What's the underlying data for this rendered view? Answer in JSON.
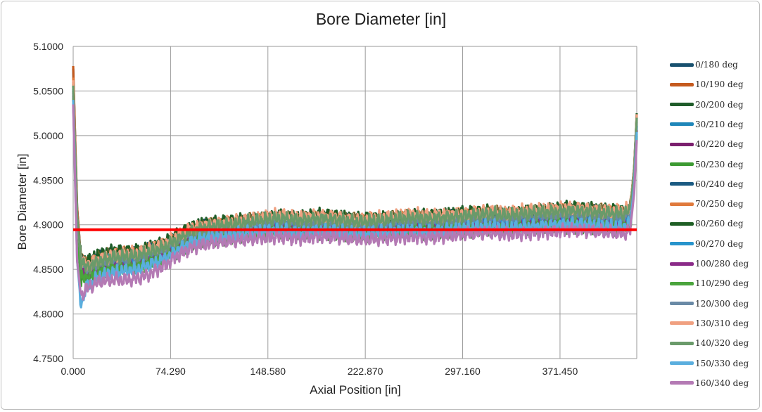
{
  "chart_data": {
    "type": "line",
    "title": "Bore Diameter [in]",
    "xlabel": "Axial Position [in]",
    "ylabel": "Bore Diameter [in]",
    "xlim": [
      0,
      430.0
    ],
    "ylim": [
      4.75,
      5.1
    ],
    "x_ticks": [
      0,
      74.29,
      148.58,
      222.87,
      297.16,
      371.45
    ],
    "x_tick_labels": [
      "0.000",
      "74.290",
      "148.580",
      "222.870",
      "297.160",
      "371.450"
    ],
    "y_ticks": [
      4.75,
      4.8,
      4.85,
      4.9,
      4.95,
      5.0,
      5.05,
      5.1
    ],
    "y_tick_labels": [
      "4.7500",
      "4.8000",
      "4.8500",
      "4.9000",
      "4.9500",
      "5.0000",
      "5.0500",
      "5.1000"
    ],
    "grid": "horizontal and vertical",
    "legend_position": "right",
    "reference_line": {
      "y": 4.8945,
      "color": "#ff0000"
    },
    "x": [
      0,
      3,
      6,
      10,
      20,
      30,
      40,
      50,
      60,
      70,
      80,
      90,
      100,
      110,
      120,
      130,
      140,
      150,
      160,
      170,
      180,
      190,
      200,
      210,
      220,
      230,
      240,
      250,
      260,
      270,
      280,
      290,
      300,
      310,
      320,
      330,
      340,
      350,
      360,
      370,
      380,
      390,
      400,
      410,
      420,
      425,
      428,
      430
    ],
    "series": [
      {
        "name": "0/180 deg",
        "color": "#17506e",
        "values": [
          5.075,
          4.92,
          4.86,
          4.855,
          4.862,
          4.865,
          4.866,
          4.868,
          4.874,
          4.876,
          4.885,
          4.893,
          4.897,
          4.898,
          4.9,
          4.901,
          4.903,
          4.905,
          4.906,
          4.904,
          4.905,
          4.906,
          4.905,
          4.903,
          4.902,
          4.903,
          4.904,
          4.906,
          4.907,
          4.906,
          4.907,
          4.908,
          4.909,
          4.91,
          4.911,
          4.909,
          4.91,
          4.912,
          4.913,
          4.914,
          4.915,
          4.914,
          4.913,
          4.912,
          4.911,
          4.915,
          4.96,
          5.02
        ]
      },
      {
        "name": "10/190 deg",
        "color": "#c55a1e",
        "values": [
          5.078,
          4.92,
          4.86,
          4.852,
          4.858,
          4.862,
          4.863,
          4.864,
          4.868,
          4.872,
          4.882,
          4.89,
          4.894,
          4.896,
          4.897,
          4.899,
          4.9,
          4.902,
          4.903,
          4.901,
          4.902,
          4.903,
          4.902,
          4.9,
          4.899,
          4.9,
          4.901,
          4.902,
          4.903,
          4.902,
          4.903,
          4.904,
          4.905,
          4.906,
          4.907,
          4.905,
          4.906,
          4.907,
          4.908,
          4.909,
          4.91,
          4.909,
          4.908,
          4.907,
          4.906,
          4.91,
          4.955,
          5.015
        ]
      },
      {
        "name": "20/200 deg",
        "color": "#1f5c2a",
        "values": [
          5.06,
          4.91,
          4.86,
          4.858,
          4.866,
          4.87,
          4.87,
          4.871,
          4.876,
          4.88,
          4.888,
          4.896,
          4.9,
          4.901,
          4.903,
          4.905,
          4.907,
          4.908,
          4.91,
          4.908,
          4.909,
          4.91,
          4.909,
          4.907,
          4.906,
          4.907,
          4.908,
          4.909,
          4.91,
          4.909,
          4.91,
          4.911,
          4.912,
          4.913,
          4.914,
          4.912,
          4.913,
          4.915,
          4.916,
          4.917,
          4.918,
          4.917,
          4.916,
          4.915,
          4.914,
          4.918,
          4.965,
          5.025
        ]
      },
      {
        "name": "30/210 deg",
        "color": "#1e86b9",
        "values": [
          5.05,
          4.9,
          4.85,
          4.848,
          4.855,
          4.858,
          4.859,
          4.86,
          4.865,
          4.87,
          4.879,
          4.887,
          4.891,
          4.893,
          4.894,
          4.896,
          4.898,
          4.899,
          4.9,
          4.898,
          4.899,
          4.9,
          4.899,
          4.897,
          4.896,
          4.897,
          4.898,
          4.899,
          4.9,
          4.899,
          4.9,
          4.901,
          4.902,
          4.903,
          4.904,
          4.902,
          4.903,
          4.904,
          4.905,
          4.906,
          4.907,
          4.906,
          4.905,
          4.904,
          4.903,
          4.907,
          4.95,
          5.01
        ]
      },
      {
        "name": "40/220 deg",
        "color": "#7a1f6e",
        "values": [
          5.045,
          4.9,
          4.85,
          4.846,
          4.852,
          4.856,
          4.857,
          4.858,
          4.863,
          4.868,
          4.877,
          4.885,
          4.889,
          4.891,
          4.892,
          4.894,
          4.896,
          4.897,
          4.898,
          4.896,
          4.897,
          4.898,
          4.897,
          4.895,
          4.894,
          4.895,
          4.896,
          4.897,
          4.898,
          4.897,
          4.898,
          4.899,
          4.9,
          4.901,
          4.902,
          4.9,
          4.901,
          4.902,
          4.903,
          4.904,
          4.905,
          4.904,
          4.903,
          4.902,
          4.901,
          4.905,
          4.945,
          5.005
        ]
      },
      {
        "name": "50/230 deg",
        "color": "#3c9a32",
        "values": [
          5.04,
          4.89,
          4.84,
          4.84,
          4.846,
          4.85,
          4.851,
          4.852,
          4.857,
          4.862,
          4.871,
          4.879,
          4.883,
          4.885,
          4.886,
          4.888,
          4.89,
          4.891,
          4.892,
          4.89,
          4.891,
          4.892,
          4.891,
          4.889,
          4.888,
          4.889,
          4.89,
          4.891,
          4.892,
          4.891,
          4.892,
          4.893,
          4.894,
          4.895,
          4.896,
          4.894,
          4.895,
          4.896,
          4.897,
          4.898,
          4.899,
          4.898,
          4.897,
          4.896,
          4.895,
          4.899,
          4.94,
          5.0
        ]
      },
      {
        "name": "60/240 deg",
        "color": "#1a5a82",
        "values": [
          5.055,
          4.91,
          4.86,
          4.854,
          4.861,
          4.864,
          4.865,
          4.866,
          4.871,
          4.875,
          4.884,
          4.892,
          4.896,
          4.897,
          4.899,
          4.9,
          4.902,
          4.904,
          4.905,
          4.903,
          4.904,
          4.905,
          4.904,
          4.902,
          4.901,
          4.902,
          4.903,
          4.905,
          4.906,
          4.905,
          4.906,
          4.907,
          4.908,
          4.909,
          4.91,
          4.908,
          4.909,
          4.911,
          4.912,
          4.913,
          4.914,
          4.913,
          4.912,
          4.911,
          4.91,
          4.914,
          4.958,
          5.018
        ]
      },
      {
        "name": "70/250 deg",
        "color": "#e07a3c",
        "values": [
          5.065,
          4.91,
          4.86,
          4.856,
          4.863,
          4.866,
          4.867,
          4.868,
          4.873,
          4.877,
          4.886,
          4.894,
          4.898,
          4.9,
          4.901,
          4.903,
          4.905,
          4.906,
          4.908,
          4.906,
          4.907,
          4.908,
          4.907,
          4.905,
          4.904,
          4.905,
          4.906,
          4.908,
          4.909,
          4.908,
          4.909,
          4.91,
          4.911,
          4.912,
          4.913,
          4.911,
          4.912,
          4.914,
          4.915,
          4.916,
          4.917,
          4.916,
          4.915,
          4.914,
          4.913,
          4.917,
          4.962,
          5.022
        ]
      },
      {
        "name": "80/260 deg",
        "color": "#1e5e24",
        "values": [
          5.058,
          4.91,
          4.86,
          4.857,
          4.864,
          4.868,
          4.869,
          4.87,
          4.875,
          4.879,
          4.888,
          4.896,
          4.9,
          4.901,
          4.903,
          4.904,
          4.906,
          4.908,
          4.909,
          4.907,
          4.908,
          4.909,
          4.908,
          4.906,
          4.905,
          4.906,
          4.907,
          4.909,
          4.91,
          4.909,
          4.91,
          4.911,
          4.912,
          4.913,
          4.914,
          4.912,
          4.913,
          4.915,
          4.916,
          4.917,
          4.918,
          4.917,
          4.916,
          4.915,
          4.914,
          4.918,
          4.963,
          5.023
        ]
      },
      {
        "name": "90/270 deg",
        "color": "#2794cc",
        "values": [
          5.052,
          4.9,
          4.85,
          4.849,
          4.856,
          4.859,
          4.86,
          4.861,
          4.866,
          4.871,
          4.88,
          4.888,
          4.892,
          4.894,
          4.895,
          4.897,
          4.899,
          4.9,
          4.901,
          4.899,
          4.9,
          4.901,
          4.9,
          4.898,
          4.897,
          4.898,
          4.899,
          4.9,
          4.901,
          4.9,
          4.901,
          4.902,
          4.903,
          4.904,
          4.905,
          4.903,
          4.904,
          4.905,
          4.906,
          4.907,
          4.908,
          4.907,
          4.906,
          4.905,
          4.904,
          4.908,
          4.951,
          5.011
        ]
      },
      {
        "name": "100/280 deg",
        "color": "#8a2a88",
        "values": [
          5.048,
          4.9,
          4.85,
          4.845,
          4.851,
          4.855,
          4.856,
          4.857,
          4.862,
          4.867,
          4.876,
          4.884,
          4.888,
          4.89,
          4.891,
          4.893,
          4.895,
          4.896,
          4.897,
          4.895,
          4.896,
          4.897,
          4.896,
          4.894,
          4.893,
          4.894,
          4.895,
          4.896,
          4.897,
          4.896,
          4.897,
          4.898,
          4.899,
          4.9,
          4.901,
          4.899,
          4.9,
          4.901,
          4.902,
          4.903,
          4.904,
          4.903,
          4.902,
          4.901,
          4.9,
          4.904,
          4.946,
          5.006
        ]
      },
      {
        "name": "110/290 deg",
        "color": "#4aa43c",
        "values": [
          5.042,
          4.89,
          4.84,
          4.842,
          4.848,
          4.852,
          4.853,
          4.854,
          4.859,
          4.864,
          4.873,
          4.881,
          4.885,
          4.887,
          4.888,
          4.89,
          4.892,
          4.893,
          4.894,
          4.892,
          4.893,
          4.894,
          4.893,
          4.891,
          4.89,
          4.891,
          4.892,
          4.893,
          4.894,
          4.893,
          4.894,
          4.895,
          4.896,
          4.897,
          4.898,
          4.896,
          4.897,
          4.898,
          4.899,
          4.9,
          4.901,
          4.9,
          4.899,
          4.898,
          4.897,
          4.901,
          4.942,
          5.002
        ]
      },
      {
        "name": "120/300 deg",
        "color": "#6a8aa6",
        "values": [
          5.05,
          4.91,
          4.86,
          4.853,
          4.86,
          4.863,
          4.864,
          4.865,
          4.87,
          4.874,
          4.883,
          4.891,
          4.895,
          4.897,
          4.898,
          4.9,
          4.902,
          4.903,
          4.904,
          4.902,
          4.903,
          4.904,
          4.903,
          4.901,
          4.9,
          4.901,
          4.902,
          4.904,
          4.905,
          4.904,
          4.905,
          4.906,
          4.907,
          4.908,
          4.909,
          4.907,
          4.908,
          4.91,
          4.911,
          4.912,
          4.913,
          4.912,
          4.911,
          4.91,
          4.909,
          4.913,
          4.956,
          5.016
        ]
      },
      {
        "name": "130/310 deg",
        "color": "#f0a080",
        "values": [
          5.062,
          4.91,
          4.86,
          4.855,
          4.862,
          4.866,
          4.867,
          4.868,
          4.873,
          4.878,
          4.887,
          4.896,
          4.9,
          4.902,
          4.903,
          4.905,
          4.907,
          4.909,
          4.91,
          4.908,
          4.909,
          4.91,
          4.909,
          4.907,
          4.906,
          4.907,
          4.908,
          4.91,
          4.911,
          4.91,
          4.911,
          4.912,
          4.913,
          4.914,
          4.915,
          4.913,
          4.914,
          4.916,
          4.917,
          4.918,
          4.919,
          4.918,
          4.917,
          4.916,
          4.915,
          4.919,
          4.964,
          5.024
        ]
      },
      {
        "name": "140/320 deg",
        "color": "#6a9a6a",
        "values": [
          5.056,
          4.91,
          4.86,
          4.852,
          4.859,
          4.863,
          4.864,
          4.865,
          4.87,
          4.875,
          4.884,
          4.893,
          4.897,
          4.899,
          4.9,
          4.902,
          4.904,
          4.906,
          4.907,
          4.905,
          4.906,
          4.907,
          4.906,
          4.904,
          4.903,
          4.904,
          4.905,
          4.907,
          4.908,
          4.907,
          4.908,
          4.909,
          4.91,
          4.911,
          4.912,
          4.91,
          4.911,
          4.913,
          4.914,
          4.915,
          4.916,
          4.915,
          4.914,
          4.913,
          4.912,
          4.916,
          4.96,
          5.02
        ]
      },
      {
        "name": "150/330 deg",
        "color": "#5aaede",
        "values": [
          5.04,
          4.86,
          4.81,
          4.83,
          4.842,
          4.846,
          4.848,
          4.85,
          4.856,
          4.862,
          4.872,
          4.881,
          4.885,
          4.887,
          4.888,
          4.89,
          4.892,
          4.893,
          4.894,
          4.892,
          4.893,
          4.894,
          4.893,
          4.891,
          4.89,
          4.891,
          4.892,
          4.893,
          4.894,
          4.893,
          4.894,
          4.895,
          4.896,
          4.897,
          4.898,
          4.896,
          4.897,
          4.898,
          4.899,
          4.9,
          4.901,
          4.9,
          4.899,
          4.898,
          4.897,
          4.901,
          4.944,
          5.004
        ]
      },
      {
        "name": "160/340 deg",
        "color": "#b47ab4",
        "values": [
          5.035,
          4.86,
          4.82,
          4.828,
          4.836,
          4.838,
          4.838,
          4.84,
          4.846,
          4.855,
          4.866,
          4.874,
          4.878,
          4.88,
          4.881,
          4.883,
          4.885,
          4.886,
          4.887,
          4.885,
          4.886,
          4.887,
          4.886,
          4.884,
          4.883,
          4.884,
          4.885,
          4.886,
          4.887,
          4.886,
          4.887,
          4.888,
          4.889,
          4.89,
          4.891,
          4.889,
          4.89,
          4.891,
          4.892,
          4.893,
          4.894,
          4.893,
          4.892,
          4.891,
          4.89,
          4.894,
          4.935,
          4.995
        ]
      }
    ]
  }
}
